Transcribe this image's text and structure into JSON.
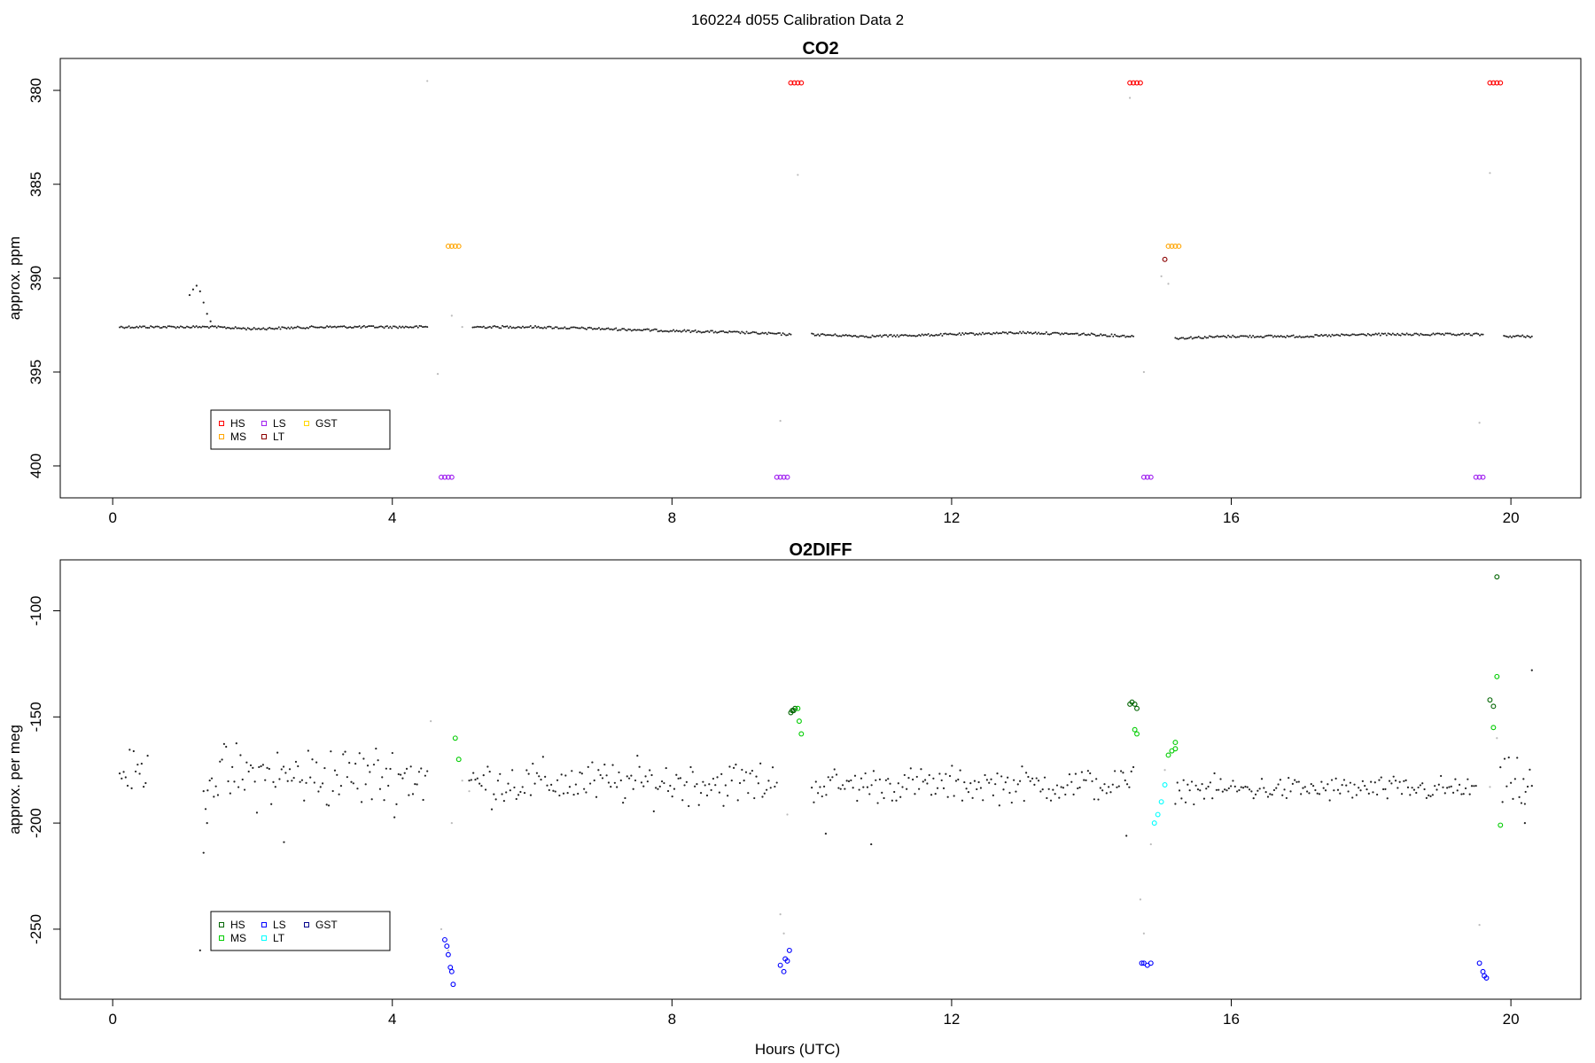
{
  "figure": {
    "suptitle": "160224   d055   Calibration Data 2",
    "xlabel": "Hours (UTC)"
  },
  "chart_data": [
    {
      "type": "scatter",
      "title": "CO2",
      "xlabel": "",
      "ylabel": "approx. ppm",
      "xlim": [
        -0.75,
        21.0
      ],
      "ylim": [
        378.3,
        401.7
      ],
      "y_reversed": true,
      "x_ticks": [
        0,
        4,
        8,
        12,
        16,
        20
      ],
      "y_ticks": [
        380,
        385,
        390,
        395,
        400
      ],
      "grid": false,
      "legend": {
        "position": "bottom-left",
        "entries": [
          {
            "label": "HS",
            "color": "#ff0000"
          },
          {
            "label": "MS",
            "color": "#ffa500"
          },
          {
            "label": "LS",
            "color": "#a020f0"
          },
          {
            "label": "LT",
            "color": "#8b0000"
          },
          {
            "label": "GST",
            "color": "#ffd700"
          }
        ]
      },
      "baseline_series": [
        {
          "name": "",
          "color": "#222222",
          "x": [
            0.1,
            0.5,
            1.4,
            2.0,
            3.0,
            4.5
          ],
          "y": [
            392.6,
            392.6,
            392.6,
            392.7,
            392.6,
            392.6
          ]
        },
        {
          "name": "",
          "color": "#222222",
          "x": [
            5.15,
            6.0,
            7.0,
            8.0,
            9.0,
            9.7
          ],
          "y": [
            392.6,
            392.6,
            392.7,
            392.8,
            392.9,
            393.0
          ]
        },
        {
          "name": "",
          "color": "#222222",
          "x": [
            10.0,
            10.8,
            12.0,
            13.0,
            14.0,
            14.6
          ],
          "y": [
            393.0,
            393.1,
            393.0,
            392.9,
            393.0,
            393.1
          ]
        },
        {
          "name": "",
          "color": "#222222",
          "x": [
            15.2,
            16.0,
            17.0,
            18.0,
            19.0,
            19.6
          ],
          "y": [
            393.2,
            393.1,
            393.1,
            393.0,
            393.0,
            393.0
          ]
        },
        {
          "name": "",
          "color": "#222222",
          "x": [
            19.9,
            20.3
          ],
          "y": [
            393.1,
            393.1
          ]
        }
      ],
      "extra_points": [
        {
          "x": 1.1,
          "y": 390.9
        },
        {
          "x": 1.15,
          "y": 390.6
        },
        {
          "x": 1.2,
          "y": 390.4
        },
        {
          "x": 1.25,
          "y": 390.7
        },
        {
          "x": 1.3,
          "y": 391.3
        },
        {
          "x": 1.35,
          "y": 391.9
        },
        {
          "x": 1.4,
          "y": 392.3
        }
      ],
      "gray_points": [
        {
          "x": 4.5,
          "y": 379.5
        },
        {
          "x": 4.65,
          "y": 395.1
        },
        {
          "x": 4.85,
          "y": 392.0
        },
        {
          "x": 5.0,
          "y": 392.6
        },
        {
          "x": 9.55,
          "y": 397.6
        },
        {
          "x": 9.8,
          "y": 384.5
        },
        {
          "x": 14.55,
          "y": 380.4
        },
        {
          "x": 14.75,
          "y": 395.0
        },
        {
          "x": 15.0,
          "y": 389.9
        },
        {
          "x": 15.1,
          "y": 390.3
        },
        {
          "x": 19.55,
          "y": 397.7
        },
        {
          "x": 19.7,
          "y": 384.4
        }
      ],
      "calibration_series": [
        {
          "name": "HS",
          "color": "#ff0000",
          "x": [
            9.7,
            9.75,
            9.8,
            9.85,
            14.55,
            14.6,
            14.65,
            14.7,
            19.7,
            19.75,
            19.8,
            19.85
          ],
          "y": [
            379.6,
            379.6,
            379.6,
            379.6,
            379.6,
            379.6,
            379.6,
            379.6,
            379.6,
            379.6,
            379.6,
            379.6
          ]
        },
        {
          "name": "MS",
          "color": "#ffa500",
          "x": [
            4.8,
            4.85,
            4.9,
            4.95,
            15.1,
            15.15,
            15.2,
            15.25
          ],
          "y": [
            388.3,
            388.3,
            388.3,
            388.3,
            388.3,
            388.3,
            388.3,
            388.3
          ]
        },
        {
          "name": "LS",
          "color": "#a020f0",
          "x": [
            4.7,
            4.75,
            4.8,
            4.85,
            9.5,
            9.55,
            9.6,
            9.65,
            14.75,
            14.8,
            14.85,
            19.5,
            19.55,
            19.6
          ],
          "y": [
            400.6,
            400.6,
            400.6,
            400.6,
            400.6,
            400.6,
            400.6,
            400.6,
            400.6,
            400.6,
            400.6,
            400.6,
            400.6,
            400.6
          ]
        },
        {
          "name": "LT",
          "color": "#8b0000",
          "x": [
            15.05
          ],
          "y": [
            389.0
          ]
        }
      ]
    },
    {
      "type": "scatter",
      "title": "O2DIFF",
      "xlabel": "Hours (UTC)",
      "ylabel": "approx. per meg",
      "xlim": [
        -0.75,
        21.0
      ],
      "ylim": [
        -283,
        -76
      ],
      "y_reversed": false,
      "x_ticks": [
        0,
        4,
        8,
        12,
        16,
        20
      ],
      "y_ticks": [
        -250,
        -200,
        -150,
        -100
      ],
      "grid": false,
      "legend": {
        "position": "bottom-left",
        "entries": [
          {
            "label": "HS",
            "color": "#006400"
          },
          {
            "label": "MS",
            "color": "#00cc00"
          },
          {
            "label": "LS",
            "color": "#0000ff"
          },
          {
            "label": "LT",
            "color": "#00ffff"
          },
          {
            "label": "GST",
            "color": "#00008b"
          }
        ]
      },
      "noisy_series": [
        {
          "name": "",
          "color": "#222222",
          "x0": 0.1,
          "x1": 0.5,
          "mean": -176,
          "spread": 8
        },
        {
          "name": "",
          "color": "#222222",
          "x0": 1.3,
          "x1": 4.5,
          "mean": -178,
          "spread": 13
        },
        {
          "name": "",
          "color": "#222222",
          "x0": 5.1,
          "x1": 9.5,
          "mean": -181,
          "spread": 9
        },
        {
          "name": "",
          "color": "#222222",
          "x0": 10.0,
          "x1": 14.6,
          "mean": -182,
          "spread": 7
        },
        {
          "name": "",
          "color": "#222222",
          "x0": 15.2,
          "x1": 19.5,
          "mean": -184,
          "spread": 5
        },
        {
          "name": "",
          "color": "#222222",
          "x0": 19.85,
          "x1": 20.3,
          "mean": -182,
          "spread": 10
        }
      ],
      "extra_points": [
        {
          "x": 1.3,
          "y": -214
        },
        {
          "x": 1.25,
          "y": -260
        },
        {
          "x": 1.35,
          "y": -200
        },
        {
          "x": 2.45,
          "y": -209
        },
        {
          "x": 10.2,
          "y": -205
        },
        {
          "x": 10.85,
          "y": -210
        },
        {
          "x": 14.5,
          "y": -206
        },
        {
          "x": 20.3,
          "y": -128
        },
        {
          "x": 20.2,
          "y": -200
        },
        {
          "x": 20.2,
          "y": -191
        }
      ],
      "gray_points": [
        {
          "x": 4.55,
          "y": -152
        },
        {
          "x": 4.7,
          "y": -250
        },
        {
          "x": 4.8,
          "y": -260
        },
        {
          "x": 4.85,
          "y": -200
        },
        {
          "x": 5.0,
          "y": -180
        },
        {
          "x": 5.1,
          "y": -185
        },
        {
          "x": 9.55,
          "y": -243
        },
        {
          "x": 9.6,
          "y": -252
        },
        {
          "x": 9.65,
          "y": -196
        },
        {
          "x": 14.7,
          "y": -236
        },
        {
          "x": 14.75,
          "y": -252
        },
        {
          "x": 14.85,
          "y": -210
        },
        {
          "x": 15.05,
          "y": -175
        },
        {
          "x": 19.55,
          "y": -248
        },
        {
          "x": 19.7,
          "y": -183
        },
        {
          "x": 19.8,
          "y": -160
        }
      ],
      "calibration_series": [
        {
          "name": "HS",
          "color": "#006400",
          "x": [
            9.7,
            9.72,
            9.74,
            9.76,
            14.55,
            14.58,
            14.62,
            14.65,
            19.7,
            19.75,
            19.8
          ],
          "y": [
            -148,
            -147,
            -147,
            -146,
            -144,
            -143,
            -144,
            -146,
            -142,
            -145,
            -84
          ]
        },
        {
          "name": "MS",
          "color": "#00cc00",
          "x": [
            4.9,
            4.95,
            9.8,
            9.82,
            9.85,
            14.62,
            14.65,
            15.1,
            15.15,
            15.2,
            15.2,
            19.75,
            19.8,
            19.85
          ],
          "y": [
            -160,
            -170,
            -146,
            -152,
            -158,
            -156,
            -158,
            -168,
            -166,
            -162,
            -165,
            -155,
            -131,
            -201
          ]
        },
        {
          "name": "LS",
          "color": "#0000ff",
          "x": [
            4.75,
            4.78,
            4.8,
            4.83,
            4.85,
            4.87,
            9.55,
            9.6,
            9.62,
            9.65,
            9.68,
            14.72,
            14.75,
            14.8,
            14.85,
            19.55,
            19.6,
            19.62,
            19.65
          ],
          "y": [
            -255,
            -258,
            -262,
            -268,
            -270,
            -276,
            -267,
            -270,
            -264,
            -265,
            -260,
            -266,
            -266,
            -267,
            -266,
            -266,
            -270,
            -272,
            -273
          ]
        },
        {
          "name": "LT",
          "color": "#00ffff",
          "x": [
            14.9,
            14.95,
            15.0,
            15.05
          ],
          "y": [
            -200,
            -196,
            -190,
            -182
          ]
        }
      ]
    }
  ]
}
